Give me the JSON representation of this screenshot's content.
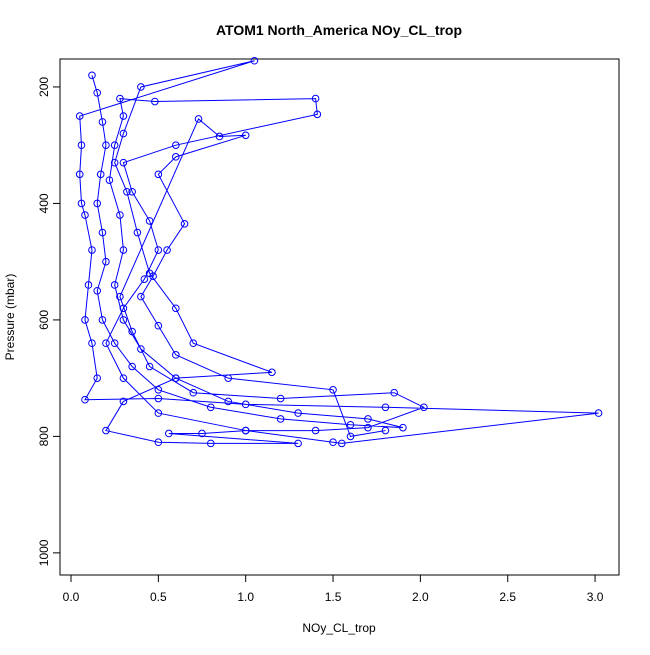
{
  "chart_data": {
    "type": "line",
    "title": "ATOM1 North_America NOy_CL_trop",
    "x_label": "NOy_CL_trop",
    "y_label": "Pressure (mbar)",
    "xlim": [
      -0.063,
      3.137
    ],
    "ylim": [
      1038,
      152
    ],
    "xticks": [
      {
        "value": 0,
        "label": "0.0"
      },
      0.5,
      {
        "value": 1,
        "label": "1.0"
      },
      1.5,
      {
        "value": 2,
        "label": "2.0"
      },
      2.5,
      {
        "value": 3,
        "label": "3.0"
      }
    ],
    "yticks": [
      200,
      400,
      600,
      800,
      1000
    ],
    "series": [
      {
        "color": "#0000ff",
        "x": [
          0.12,
          0.15,
          0.18,
          0.2,
          0.17,
          0.15,
          0.18,
          0.2,
          0.15,
          0.18,
          0.25,
          0.35,
          0.5,
          0.8,
          1.2,
          1.6,
          1.9,
          1.7,
          1.3,
          0.9,
          0.6,
          0.4,
          0.3,
          0.25,
          0.3,
          0.28,
          0.22,
          0.25,
          0.3,
          0.28,
          0.48,
          1.4,
          1.41,
          0.6,
          0.3,
          0.35,
          0.45,
          0.5,
          0.42,
          0.3,
          0.2,
          0.3,
          0.5,
          1.0,
          1.5,
          1.55,
          3.02,
          1.8,
          1.0,
          0.5,
          0.08,
          0.15,
          0.12,
          0.08,
          0.1,
          0.12,
          0.08,
          0.06,
          0.05,
          0.06,
          0.05,
          1.05,
          0.4,
          0.3,
          0.25,
          0.32,
          0.38,
          0.45,
          0.6,
          0.7,
          1.15,
          0.6,
          0.3,
          0.2,
          0.5,
          0.8,
          1.3,
          0.56,
          0.75,
          1.0,
          1.4,
          1.7,
          2.02,
          1.85,
          1.2,
          0.7,
          0.45,
          0.35,
          0.28,
          0.73,
          0.85,
          1.0,
          0.6,
          0.5,
          0.65,
          0.55,
          0.47,
          0.4,
          0.5,
          0.6,
          0.9,
          1.5,
          1.6,
          1.8
        ],
        "values": [
          180,
          210,
          260,
          300,
          350,
          400,
          450,
          500,
          550,
          600,
          640,
          680,
          720,
          750,
          770,
          780,
          785,
          770,
          760,
          740,
          700,
          650,
          600,
          540,
          480,
          420,
          360,
          300,
          250,
          220,
          225,
          220,
          247,
          300,
          330,
          380,
          430,
          480,
          530,
          580,
          640,
          700,
          760,
          790,
          810,
          812,
          760,
          750,
          745,
          735,
          737,
          700,
          640,
          600,
          540,
          480,
          420,
          400,
          350,
          300,
          250,
          155,
          200,
          280,
          330,
          380,
          450,
          520,
          580,
          640,
          690,
          700,
          740,
          790,
          810,
          812,
          812,
          795,
          795,
          790,
          790,
          785,
          750,
          725,
          735,
          725,
          680,
          620,
          560,
          255,
          285,
          283,
          320,
          350,
          435,
          480,
          525,
          560,
          610,
          660,
          700,
          720,
          800,
          790
        ]
      }
    ]
  }
}
